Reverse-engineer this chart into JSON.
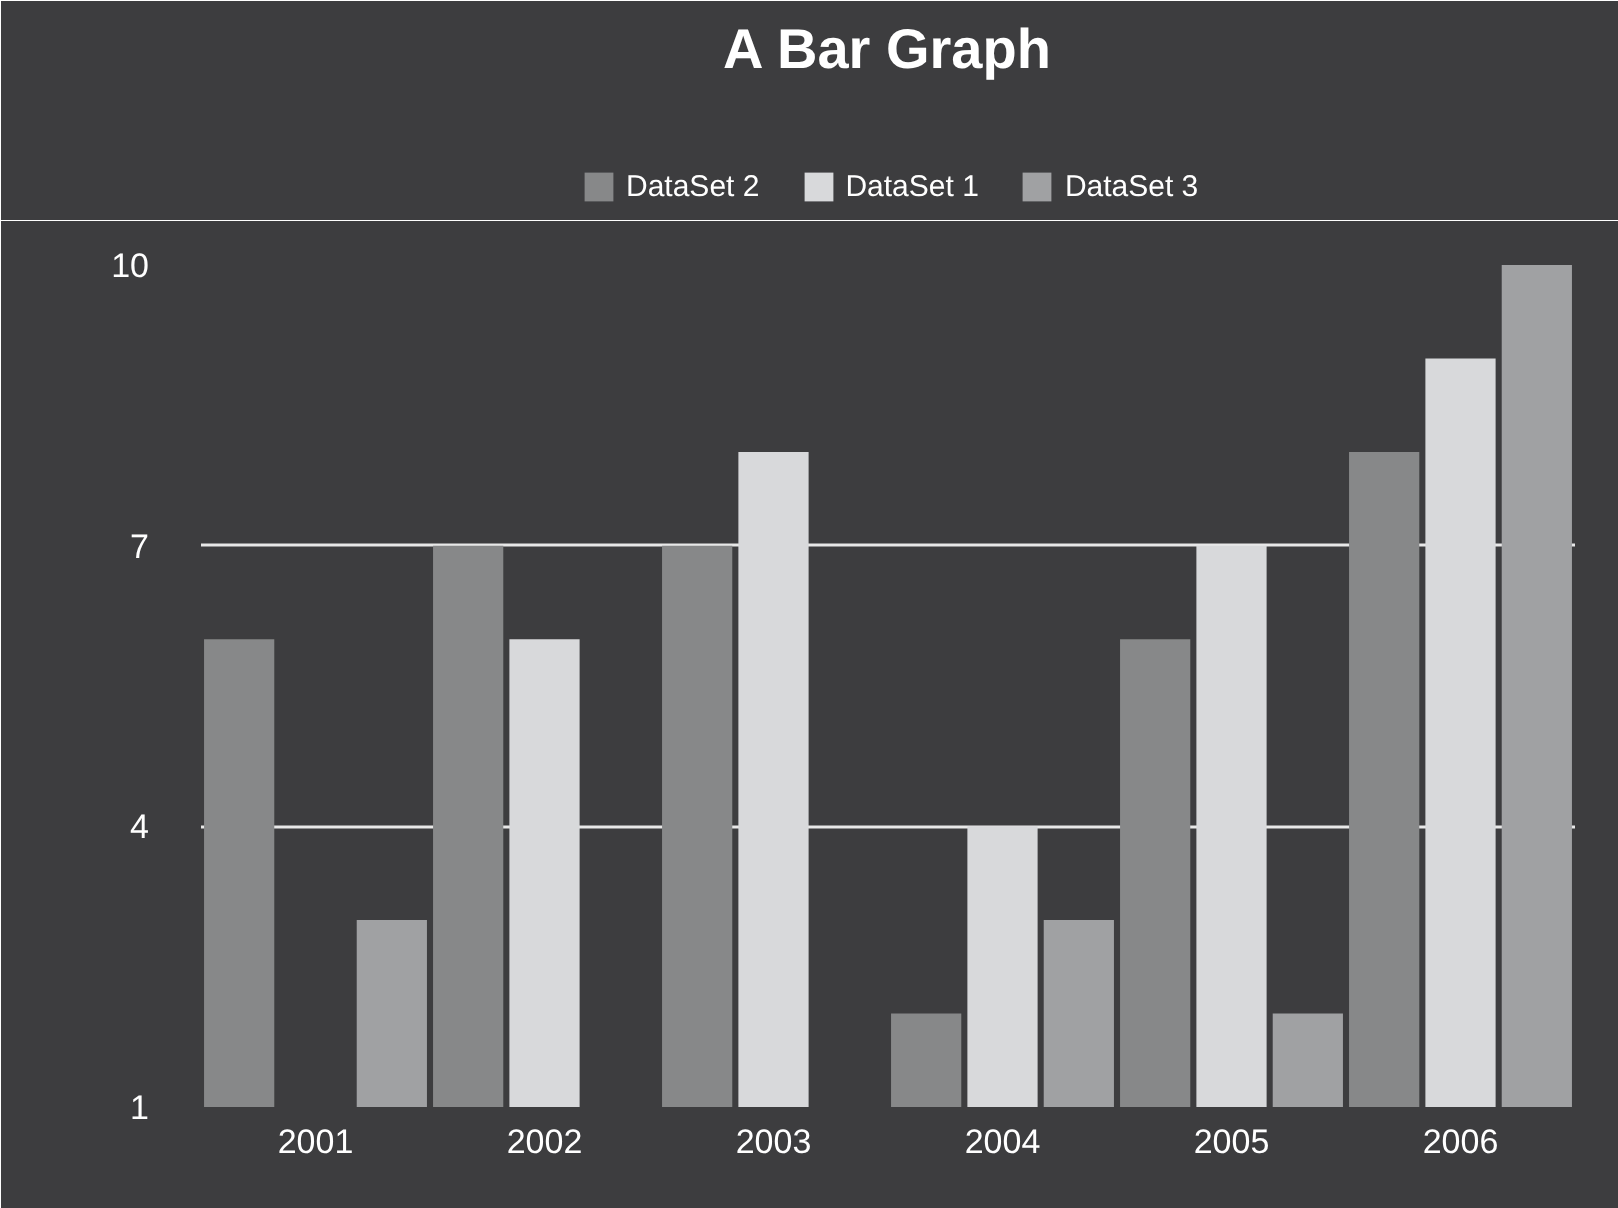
{
  "chart_data": {
    "type": "bar",
    "title": "A Bar Graph",
    "categories": [
      "2001",
      "2002",
      "2003",
      "2004",
      "2005",
      "2006"
    ],
    "series": [
      {
        "name": "DataSet 2",
        "color": "#878889",
        "values": [
          6,
          7,
          7,
          2,
          6,
          8
        ]
      },
      {
        "name": "DataSet 1",
        "color": "#d8d9db",
        "values": [
          1,
          6,
          8,
          4,
          7,
          9
        ]
      },
      {
        "name": "DataSet 3",
        "color": "#a0a1a3",
        "values": [
          3,
          1,
          1,
          3,
          2,
          10
        ]
      }
    ],
    "ylim": [
      1,
      10
    ],
    "yticks": [
      1,
      4,
      7,
      10
    ],
    "grid": "y",
    "legend": "top"
  }
}
